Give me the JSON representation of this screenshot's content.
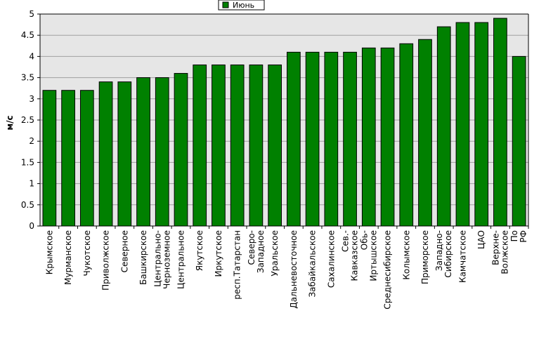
{
  "chart_data": {
    "type": "bar",
    "title": "",
    "xlabel": "",
    "ylabel": "м/с",
    "ylim": [
      0,
      5
    ],
    "yticks": [
      "0",
      "0.5",
      "1",
      "1.5",
      "2",
      "2.5",
      "3",
      "3.5",
      "4",
      "4.5",
      "5"
    ],
    "grid": true,
    "legend_position": "top",
    "categories": [
      "Крымское",
      "Мурманское",
      "Чукотское",
      "Приволжское",
      "Северное",
      "Башкирское",
      "Центрально- Черноземное",
      "Центральное",
      "Якутское",
      "Иркутское",
      "респ.Татарстан",
      "Северо- Западное",
      "Уральское",
      "Дальневосточное",
      "Забайкальское",
      "Сахалинское",
      "Сев.- Кавказское",
      "Обь- Иртышское",
      "Среднесибирское",
      "Колымское",
      "Приморское",
      "Западно- Сибирское",
      "Камчатское",
      "ЦАО",
      "Верхне- Волжское",
      "По РФ"
    ],
    "series": [
      {
        "name": "Июнь",
        "color": "#008000",
        "values": [
          3.2,
          3.2,
          3.2,
          3.4,
          3.4,
          3.5,
          3.5,
          3.6,
          3.8,
          3.8,
          3.8,
          3.8,
          3.8,
          4.1,
          4.1,
          4.1,
          4.1,
          4.2,
          4.2,
          4.3,
          4.4,
          4.7,
          4.8,
          4.8,
          4.9,
          4.0
        ]
      }
    ],
    "colors": {
      "bar": "#008000",
      "plot_background": "#e6e6e6",
      "grid": "#a0a0a0",
      "axis": "#000000"
    }
  }
}
